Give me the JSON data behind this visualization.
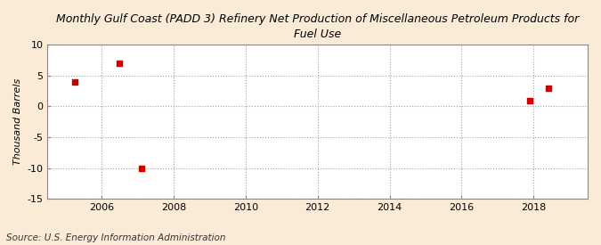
{
  "title": "Monthly Gulf Coast (PADD 3) Refinery Net Production of Miscellaneous Petroleum Products for\nFuel Use",
  "ylabel": "Thousand Barrels",
  "source": "Source: U.S. Energy Information Administration",
  "background_color": "#faebd7",
  "plot_bg_color": "#ffffff",
  "data_x": [
    2005.25,
    2006.5,
    2007.1,
    2017.9,
    2018.4
  ],
  "data_y": [
    4,
    7,
    -10,
    1,
    3
  ],
  "marker_color": "#cc0000",
  "marker_size": 4,
  "xlim": [
    2004.5,
    2019.5
  ],
  "ylim": [
    -15,
    10
  ],
  "xticks": [
    2006,
    2008,
    2010,
    2012,
    2014,
    2016,
    2018
  ],
  "yticks": [
    -15,
    -10,
    -5,
    0,
    5,
    10
  ],
  "grid_color": "#999999",
  "grid_style": ":",
  "title_fontsize": 9,
  "label_fontsize": 8,
  "tick_fontsize": 8,
  "source_fontsize": 7.5
}
